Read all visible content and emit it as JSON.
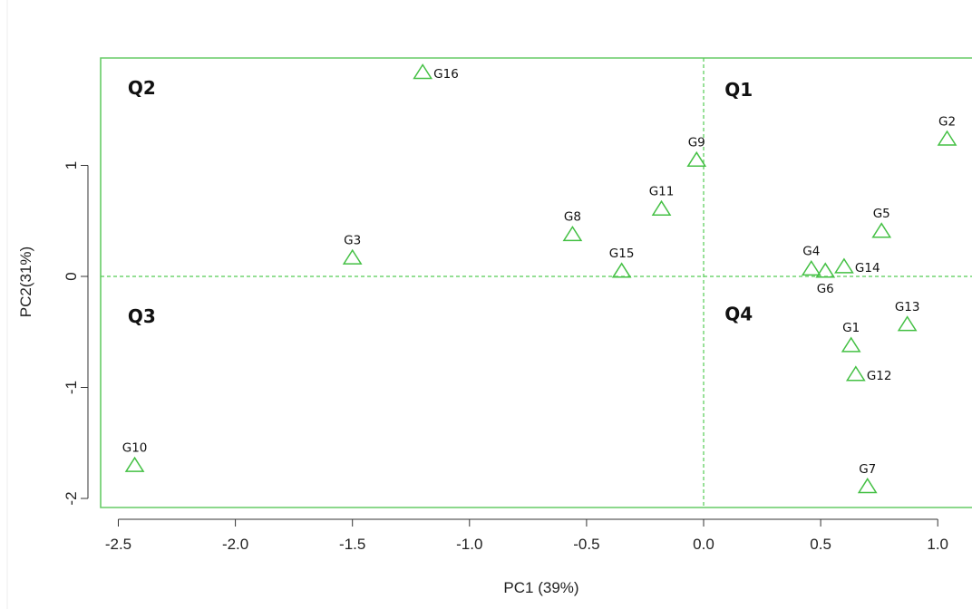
{
  "chart_data": {
    "type": "scatter",
    "xlabel": "PC1 (39%)",
    "ylabel": "PC2(31%)",
    "xlim": [
      -2.55,
      1.15
    ],
    "ylim": [
      -2.05,
      1.95
    ],
    "xticks": [
      -2.5,
      -2.0,
      -1.5,
      -1.0,
      -0.5,
      0.0,
      0.5,
      1.0
    ],
    "xtick_labels": [
      "-2.5",
      "-2.0",
      "-1.5",
      "-1.0",
      "-0.5",
      "0.0",
      "0.5",
      "1.0"
    ],
    "yticks": [
      -2,
      -1,
      0,
      1
    ],
    "ytick_labels": [
      "-2",
      "-1",
      "0",
      "1"
    ],
    "grid": false,
    "reference_lines": {
      "x": 0,
      "y": 0,
      "style": "dashed"
    },
    "colors": {
      "points": "#44c044",
      "frame": "#66cc66",
      "reference": "#55cc55"
    },
    "quadrants": [
      {
        "label": "Q1",
        "x": 0.09,
        "y": 1.68
      },
      {
        "label": "Q2",
        "x": -2.46,
        "y": 1.7
      },
      {
        "label": "Q3",
        "x": -2.46,
        "y": -0.36
      },
      {
        "label": "Q4",
        "x": 0.09,
        "y": -0.34
      }
    ],
    "points": [
      {
        "label": "G1",
        "x": 0.63,
        "y": -0.63,
        "label_pos": "top"
      },
      {
        "label": "G2",
        "x": 1.04,
        "y": 1.23,
        "label_pos": "top"
      },
      {
        "label": "G3",
        "x": -1.5,
        "y": 0.16,
        "label_pos": "top"
      },
      {
        "label": "G4",
        "x": 0.46,
        "y": 0.06,
        "label_pos": "top"
      },
      {
        "label": "G5",
        "x": 0.76,
        "y": 0.4,
        "label_pos": "top"
      },
      {
        "label": "G6",
        "x": 0.52,
        "y": 0.04,
        "label_pos": "bottom"
      },
      {
        "label": "G7",
        "x": 0.7,
        "y": -1.9,
        "label_pos": "top"
      },
      {
        "label": "G8",
        "x": -0.56,
        "y": 0.37,
        "label_pos": "top"
      },
      {
        "label": "G9",
        "x": -0.03,
        "y": 1.04,
        "label_pos": "top"
      },
      {
        "label": "G10",
        "x": -2.43,
        "y": -1.71,
        "label_pos": "top"
      },
      {
        "label": "G11",
        "x": -0.18,
        "y": 0.6,
        "label_pos": "top"
      },
      {
        "label": "G12",
        "x": 0.65,
        "y": -0.89,
        "label_pos": "right"
      },
      {
        "label": "G13",
        "x": 0.87,
        "y": -0.44,
        "label_pos": "top"
      },
      {
        "label": "G14",
        "x": 0.6,
        "y": 0.08,
        "label_pos": "right"
      },
      {
        "label": "G15",
        "x": -0.35,
        "y": 0.04,
        "label_pos": "top"
      },
      {
        "label": "G16",
        "x": -1.2,
        "y": 1.83,
        "label_pos": "right"
      }
    ]
  }
}
